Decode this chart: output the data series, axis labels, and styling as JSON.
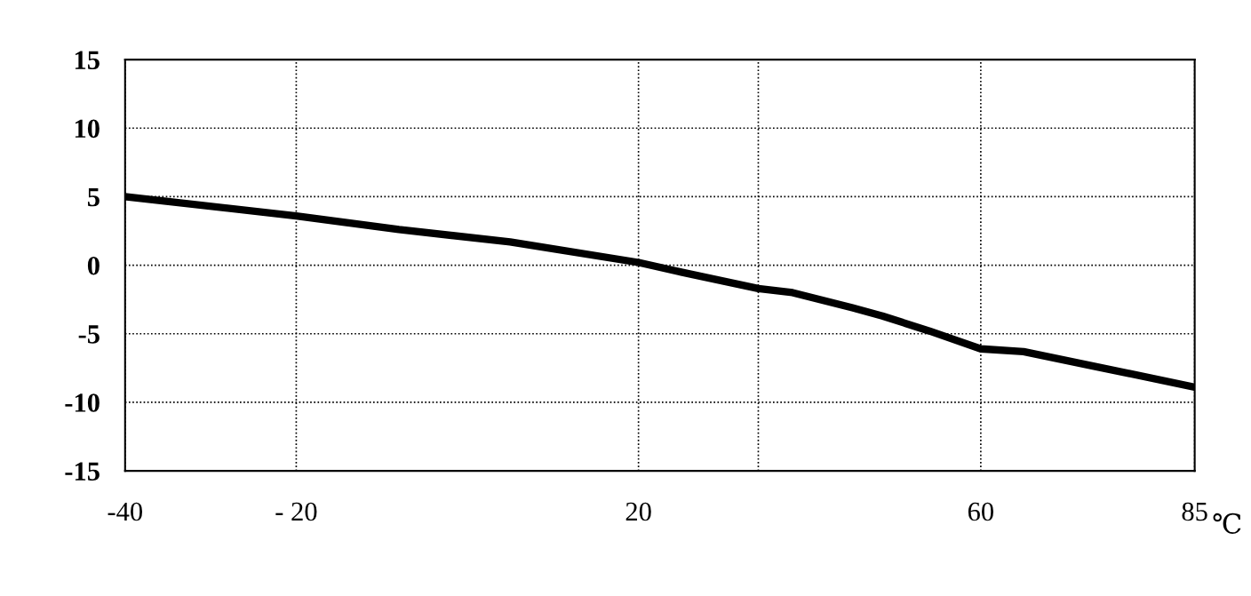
{
  "chart_data": {
    "type": "line",
    "xlabel": "℃",
    "x": [
      -40,
      -20,
      -8,
      5,
      20,
      25,
      34,
      38,
      45,
      48.5,
      54,
      60,
      65,
      73.5,
      85
    ],
    "series": [
      {
        "color": "#000000",
        "values": [
          5.0,
          3.6,
          2.6,
          1.7,
          0.2,
          -0.5,
          -1.7,
          -2.0,
          -3.1,
          -3.7,
          -4.8,
          -6.1,
          -6.3,
          -7.4,
          -8.9
        ]
      }
    ],
    "xlim": [
      -40,
      85
    ],
    "xticks": [
      -40,
      {
        "value": -20,
        "label": "- 20"
      },
      20,
      {
        "value": 34,
        "label": null
      },
      60,
      85
    ],
    "ylim": [
      -15,
      15
    ],
    "yticks": [
      -15,
      -10,
      -5,
      0,
      5,
      10,
      15
    ],
    "grid": true,
    "line_style": "solid",
    "marker": "none"
  }
}
